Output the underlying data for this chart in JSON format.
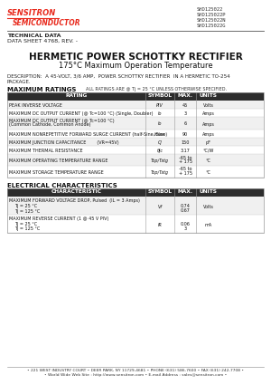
{
  "title": "HERMETIC POWER SCHOTTKY RECTIFIER",
  "subtitle": "175°C Maximum Operation Temperature",
  "company_name": "SENSITRON",
  "company_sub": "SEMICONDUCTOR",
  "part_numbers": [
    "SHD125022",
    "SHD125022P",
    "SHD125022N",
    "SHD125022G"
  ],
  "tech_data": "TECHNICAL DATA",
  "data_sheet": "DATA SHEET 4768, REV. -",
  "desc_line1": "DESCRIPTION:  A 45-VOLT, 3/6 AMP,  POWER SCHOTTKY RECTIFIER  IN A HERMETIC TO-254",
  "desc_line2": "PACKAGE.",
  "max_ratings_title": "MAXIMUM RATINGS",
  "max_ratings_note": "ALL RATINGS ARE @ Tj = 25 °C UNLESS OTHERWISE SPECIFIED.",
  "max_ratings_headers": [
    "RATING",
    "SYMBOL",
    "MAX.",
    "UNITS"
  ],
  "elec_char_title": "ELECTRICAL CHARACTERISTICS",
  "elec_char_headers": [
    "CHARACTERISTIC",
    "SYMBOL",
    "MAX.",
    "UNITS"
  ],
  "accent_color": "#e8291c",
  "header_bg": "#2d2d2d",
  "header_fg": "#ffffff",
  "border_color": "#999999",
  "footer_line1": "• 221 WEST INDUSTRY COURT • DEER PARK, NY 11729-4681 • PHONE (631) 586-7600 • FAX (631) 242-7708 •",
  "footer_line2": "• World Wide Web Site : http://www.sensitron.com • E-mail Address : sales@sensitron.com •"
}
